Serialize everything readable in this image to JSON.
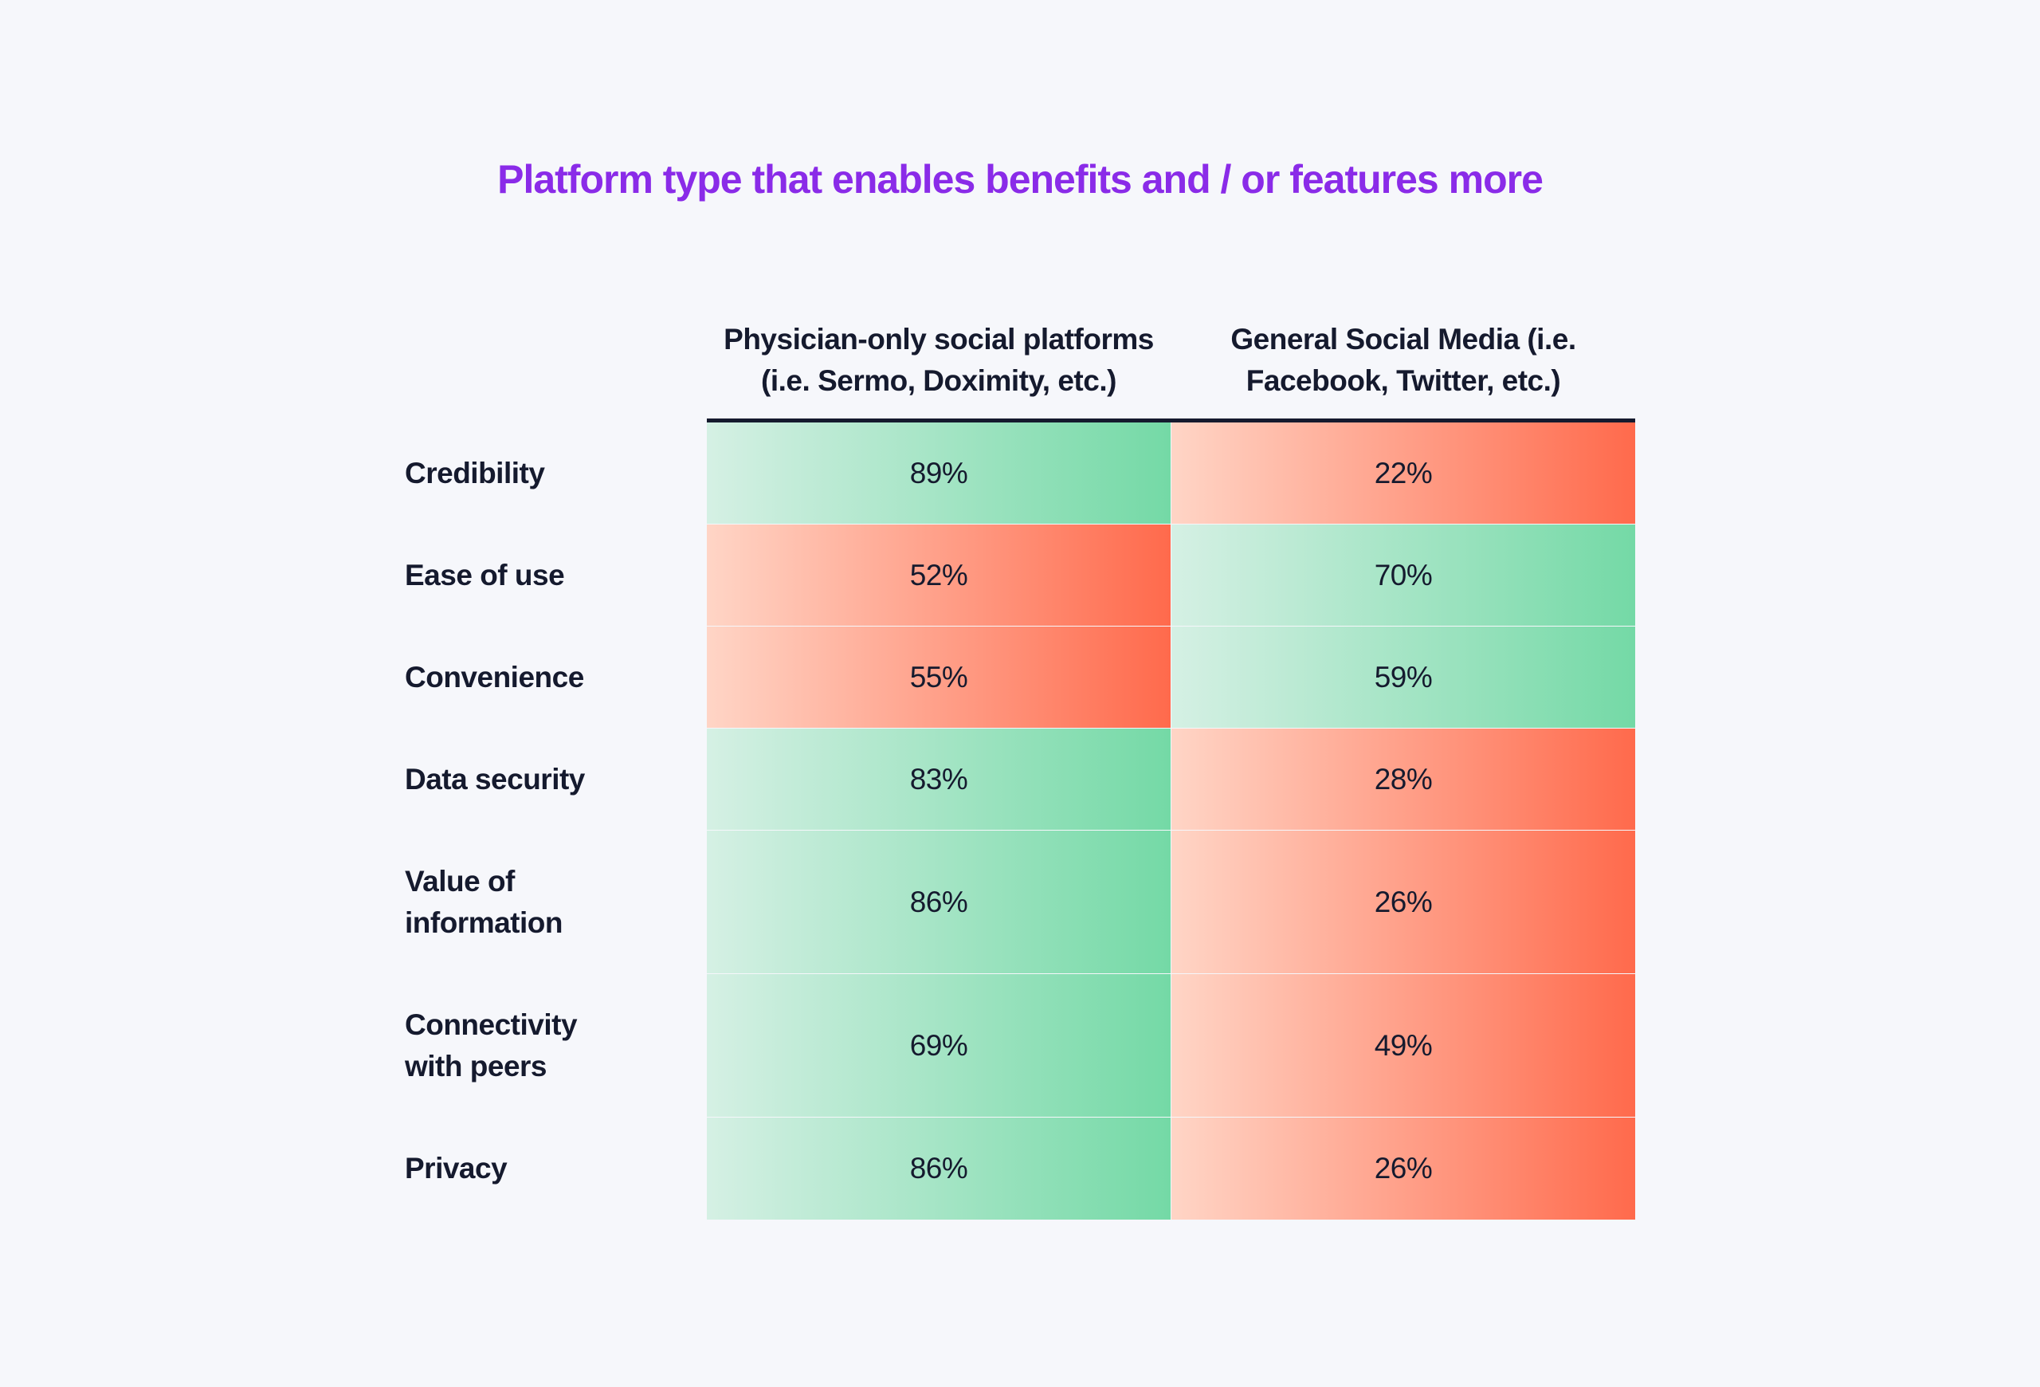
{
  "chart_data": {
    "type": "table",
    "title": "Platform type that enables benefits and / or features more",
    "columns": [
      {
        "line1": "Physician-only social platforms",
        "line2": "(i.e. Sermo, Doximity, etc.)"
      },
      {
        "line1": "General Social Media (i.e.",
        "line2": "Facebook, Twitter, etc.)"
      }
    ],
    "rows": [
      {
        "label_line1": "Credibility",
        "label_line2": "",
        "values": [
          "89%",
          "22%"
        ],
        "winner": 0
      },
      {
        "label_line1": "Ease of use",
        "label_line2": "",
        "values": [
          "52%",
          "70%"
        ],
        "winner": 1
      },
      {
        "label_line1": "Convenience",
        "label_line2": "",
        "values": [
          "55%",
          "59%"
        ],
        "winner": 1
      },
      {
        "label_line1": "Data security",
        "label_line2": "",
        "values": [
          "83%",
          "28%"
        ],
        "winner": 0
      },
      {
        "label_line1": "Value of",
        "label_line2": "information",
        "values": [
          "86%",
          "26%"
        ],
        "winner": 0
      },
      {
        "label_line1": "Connectivity",
        "label_line2": "with peers",
        "values": [
          "69%",
          "49%"
        ],
        "winner": 0
      },
      {
        "label_line1": "Privacy",
        "label_line2": "",
        "values": [
          "86%",
          "26%"
        ],
        "winner": 0
      }
    ],
    "colors": {
      "title": "#8a2be8",
      "favorable": "#74d9a6",
      "unfavorable": "#ff6a4c"
    }
  }
}
